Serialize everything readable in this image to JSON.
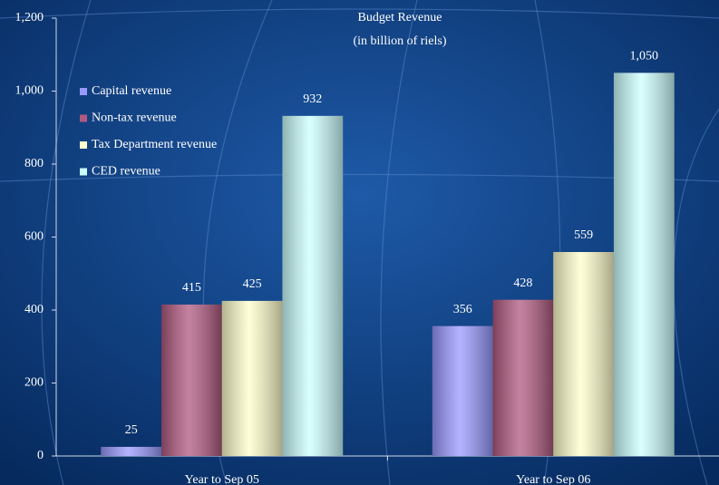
{
  "chart_data": {
    "type": "bar",
    "title": "Budget Revenue",
    "subtitle": "(in billion of riels)",
    "categories": [
      "Year to Sep 05",
      "Year to Sep 06"
    ],
    "series": [
      {
        "name": "Capital revenue",
        "color": "#9999ff",
        "values": [
          25,
          356
        ]
      },
      {
        "name": "Non-tax revenue",
        "color": "#b05a80",
        "values": [
          415,
          428
        ]
      },
      {
        "name": "Tax Department revenue",
        "color": "#ffffcc",
        "values": [
          425,
          559
        ]
      },
      {
        "name": "CED revenue",
        "color": "#ccffff",
        "values": [
          932,
          1050
        ],
        "value_labels": [
          "932",
          "1,050"
        ]
      }
    ],
    "ylim": [
      0,
      1200
    ],
    "yticks": [
      0,
      200,
      400,
      600,
      800,
      {
        "value": 1000,
        "label": "1,000"
      },
      {
        "value": 1200,
        "label": "1,200"
      }
    ],
    "grid": false,
    "legend": "top-left"
  }
}
